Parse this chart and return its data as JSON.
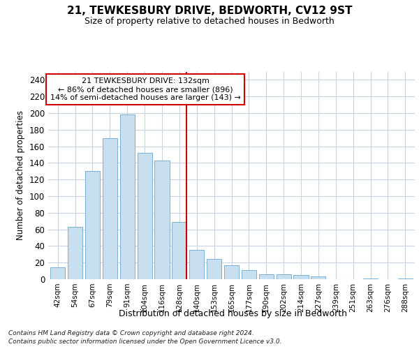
{
  "title": "21, TEWKESBURY DRIVE, BEDWORTH, CV12 9ST",
  "subtitle": "Size of property relative to detached houses in Bedworth",
  "xlabel": "Distribution of detached houses by size in Bedworth",
  "ylabel": "Number of detached properties",
  "categories": [
    "42sqm",
    "54sqm",
    "67sqm",
    "79sqm",
    "91sqm",
    "104sqm",
    "116sqm",
    "128sqm",
    "140sqm",
    "153sqm",
    "165sqm",
    "177sqm",
    "190sqm",
    "202sqm",
    "214sqm",
    "227sqm",
    "239sqm",
    "251sqm",
    "263sqm",
    "276sqm",
    "288sqm"
  ],
  "values": [
    14,
    63,
    130,
    170,
    198,
    152,
    143,
    69,
    35,
    24,
    17,
    11,
    6,
    6,
    5,
    3,
    0,
    0,
    1,
    0,
    1
  ],
  "bar_color": "#c8dff0",
  "bar_edgecolor": "#7ab0d4",
  "vline_index": 7,
  "ylim": [
    0,
    250
  ],
  "yticks": [
    0,
    20,
    40,
    60,
    80,
    100,
    120,
    140,
    160,
    180,
    200,
    220,
    240
  ],
  "annotation_title": "21 TEWKESBURY DRIVE: 132sqm",
  "annotation_line1": "← 86% of detached houses are smaller (896)",
  "annotation_line2": "14% of semi-detached houses are larger (143) →",
  "vline_color": "#cc0000",
  "footer1": "Contains HM Land Registry data © Crown copyright and database right 2024.",
  "footer2": "Contains public sector information licensed under the Open Government Licence v3.0."
}
